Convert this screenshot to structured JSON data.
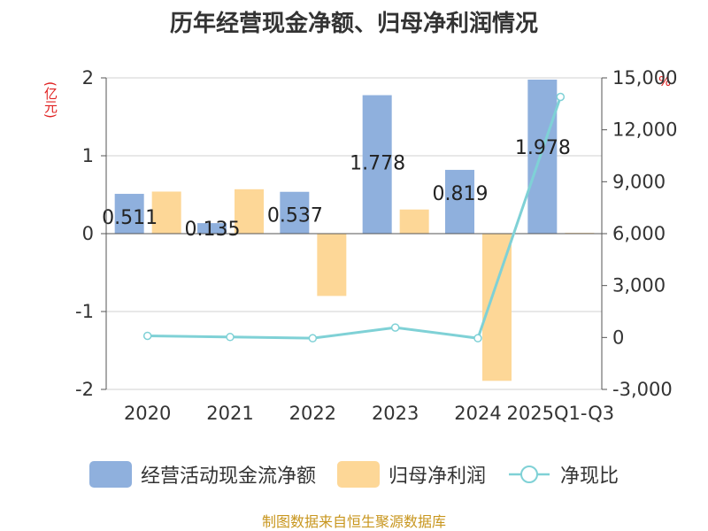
{
  "title": "历年经营现金净额、归母净利润情况",
  "left_unit": "(亿元)",
  "right_unit": "%",
  "source": "制图数据来自恒生聚源数据库",
  "colors": {
    "cash": "#8fb0dd",
    "profit": "#fdd797",
    "ratio": "#7fd1d6",
    "label": "#e02020",
    "source": "#c8961e"
  },
  "legend": [
    {
      "label": "经营活动现金流净额",
      "kind": "bar",
      "color": "#8fb0dd"
    },
    {
      "label": "归母净利润",
      "kind": "bar",
      "color": "#fdd797"
    },
    {
      "label": "净现比",
      "kind": "line",
      "color": "#7fd1d6"
    }
  ],
  "chart_data": {
    "type": "bar",
    "categories": [
      "2020",
      "2021",
      "2022",
      "2023",
      "2024",
      "2025Q1-Q3"
    ],
    "series": [
      {
        "name": "经营活动现金流净额",
        "type": "bar",
        "axis": "left",
        "values": [
          0.511,
          0.135,
          0.537,
          1.778,
          0.819,
          1.978
        ],
        "data_labels": [
          "0.511",
          "0.135",
          "0.537",
          "1.778",
          "0.819",
          "1.978"
        ]
      },
      {
        "name": "归母净利润",
        "type": "bar",
        "axis": "left",
        "values": [
          0.54,
          0.57,
          -0.8,
          0.31,
          -1.89,
          0.01
        ]
      },
      {
        "name": "净现比",
        "type": "line",
        "axis": "right",
        "values": [
          95,
          27,
          -43,
          574,
          -43,
          13900
        ]
      }
    ],
    "y_left": {
      "min": -2,
      "max": 2,
      "ticks": [
        "2",
        "1",
        "0",
        "-1",
        "-2"
      ]
    },
    "y_right": {
      "min": -3000,
      "max": 15000,
      "ticks": [
        "15,000",
        "12,000",
        "9,000",
        "6,000",
        "3,000",
        "0",
        "-3,000"
      ]
    },
    "grid": true,
    "legend_position": "bottom"
  }
}
